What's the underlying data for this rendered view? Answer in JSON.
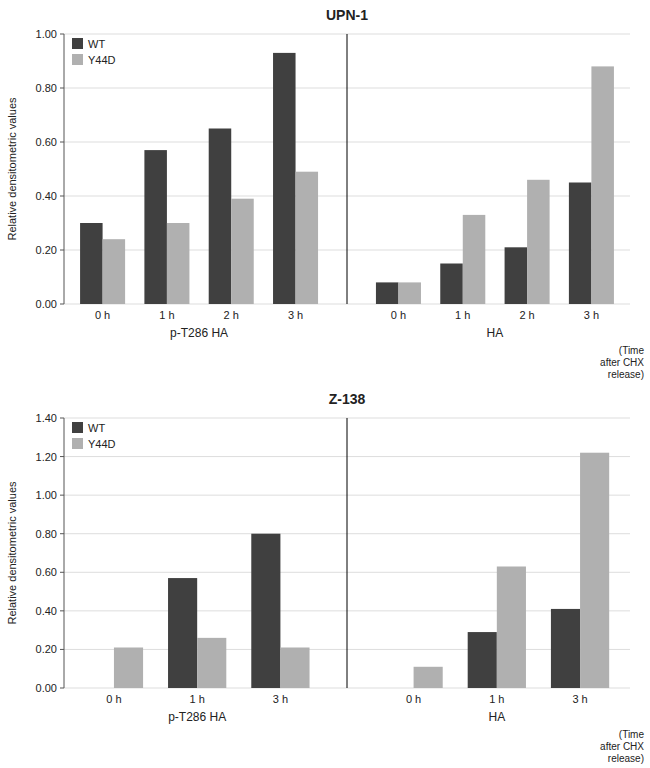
{
  "chart_data": [
    {
      "type": "bar",
      "title": "UPN-1",
      "ylabel": "Relative densitometric values",
      "xlabel": "(Time\nafter CHX\nrelease)",
      "annotations": [
        "p-T286 HA",
        "HA"
      ],
      "categories": [
        "0 h",
        "1 h",
        "2 h",
        "3 h",
        "0 h",
        "1 h",
        "2 h",
        "3 h"
      ],
      "series": [
        {
          "name": "WT",
          "color": "#404040",
          "values": [
            0.3,
            0.57,
            0.65,
            0.93,
            0.08,
            0.15,
            0.21,
            0.45
          ]
        },
        {
          "name": "Y44D",
          "color": "#b0b0b0",
          "values": [
            0.24,
            0.3,
            0.39,
            0.49,
            0.08,
            0.33,
            0.46,
            0.88
          ]
        }
      ],
      "ylim": [
        0.0,
        1.0
      ],
      "yticks": [
        {
          "value": 0.0,
          "label": "0.00"
        },
        {
          "value": 0.2,
          "label": "0.20"
        },
        {
          "value": 0.4,
          "label": "0.40"
        },
        {
          "value": 0.6,
          "label": "0.60"
        },
        {
          "value": 0.8,
          "label": "0.80"
        },
        {
          "value": 1.0,
          "label": "1.00"
        }
      ],
      "grid": true,
      "legend": "upper left"
    },
    {
      "type": "bar",
      "title": "Z-138",
      "ylabel": "Relative densitometric values",
      "xlabel": "(Time\nafter CHX\nrelease)",
      "annotations": [
        "p-T286 HA",
        "HA"
      ],
      "categories": [
        "0 h",
        "1 h",
        "3 h",
        "0 h",
        "1 h",
        "3 h"
      ],
      "series": [
        {
          "name": "WT",
          "color": "#404040",
          "values": [
            0.0,
            0.57,
            0.8,
            0.0,
            0.29,
            0.41
          ]
        },
        {
          "name": "Y44D",
          "color": "#b0b0b0",
          "values": [
            0.21,
            0.26,
            0.21,
            0.11,
            0.63,
            1.22
          ]
        }
      ],
      "ylim": [
        0.0,
        1.4
      ],
      "yticks": [
        {
          "value": 0.0,
          "label": "0.00"
        },
        {
          "value": 0.2,
          "label": "0.20"
        },
        {
          "value": 0.4,
          "label": "0.40"
        },
        {
          "value": 0.6,
          "label": "0.60"
        },
        {
          "value": 0.8,
          "label": "0.80"
        },
        {
          "value": 1.0,
          "label": "1.00"
        },
        {
          "value": 1.2,
          "label": "1.20"
        },
        {
          "value": 1.4,
          "label": "1.40"
        }
      ],
      "grid": true,
      "legend": "upper left"
    }
  ]
}
